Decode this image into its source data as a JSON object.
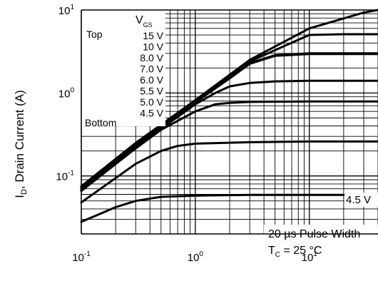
{
  "chart_data": {
    "type": "line",
    "scale": {
      "x": "log",
      "y": "log"
    },
    "xlim": [
      0.1,
      40
    ],
    "ylim": [
      0.02,
      10
    ],
    "grid": true,
    "ylabel": {
      "main": "I",
      "sub": "D",
      "rest": ", Drain Current (A)"
    },
    "x_ticks": [
      {
        "value": 0.1,
        "base": "10",
        "exp": "-1"
      },
      {
        "value": 1,
        "base": "10",
        "exp": "0"
      },
      {
        "value": 10,
        "base": "10",
        "exp": "1"
      }
    ],
    "y_ticks": [
      {
        "value": 10,
        "base": "10",
        "exp": "1"
      },
      {
        "value": 1,
        "base": "10",
        "exp": "0"
      },
      {
        "value": 0.1,
        "base": "10",
        "exp": "-1"
      }
    ],
    "legend": {
      "heading": {
        "main": "V",
        "sub": "GS"
      },
      "top_label": "Top",
      "bottom_label": "Bottom",
      "entries": [
        "15 V",
        "10 V",
        "8.0 V",
        "7.0 V",
        "6.0 V",
        "5.5 V",
        "5.0 V",
        "4.5 V"
      ]
    },
    "annotations": {
      "curve_label": "4.5 V",
      "pulse": "20 µs Pulse Width",
      "temp": {
        "main": "T",
        "sub": "C",
        "rest": " = 25 °C"
      }
    },
    "series": [
      {
        "name": "15 V",
        "x": [
          0.1,
          0.3,
          1,
          3,
          10,
          30,
          40
        ],
        "y": [
          0.075,
          0.25,
          0.82,
          2.5,
          6.0,
          9.3,
          10
        ]
      },
      {
        "name": "10 V",
        "x": [
          0.1,
          0.3,
          1,
          3,
          10,
          20,
          40
        ],
        "y": [
          0.073,
          0.245,
          0.8,
          2.4,
          5.0,
          5.1,
          5.1
        ]
      },
      {
        "name": "8.0 V",
        "x": [
          0.1,
          0.3,
          1,
          2,
          3,
          5,
          10,
          40
        ],
        "y": [
          0.072,
          0.24,
          0.78,
          1.55,
          2.3,
          2.85,
          3.0,
          3.0
        ]
      },
      {
        "name": "7.0 V",
        "x": [
          0.1,
          0.3,
          1,
          2,
          3,
          5,
          10,
          40
        ],
        "y": [
          0.07,
          0.235,
          0.77,
          1.5,
          2.25,
          2.8,
          2.95,
          2.95
        ]
      },
      {
        "name": "6.0 V",
        "x": [
          0.1,
          0.3,
          1,
          1.5,
          2,
          3,
          5,
          10,
          40
        ],
        "y": [
          0.068,
          0.225,
          0.73,
          1.0,
          1.2,
          1.32,
          1.38,
          1.4,
          1.4
        ]
      },
      {
        "name": "5.5 V",
        "x": [
          0.1,
          0.3,
          0.5,
          1,
          1.5,
          2,
          3,
          10,
          40
        ],
        "y": [
          0.066,
          0.215,
          0.36,
          0.6,
          0.73,
          0.76,
          0.78,
          0.79,
          0.79
        ]
      },
      {
        "name": "5.0 V",
        "x": [
          0.1,
          0.3,
          0.5,
          0.7,
          1,
          3,
          10,
          40
        ],
        "y": [
          0.048,
          0.14,
          0.2,
          0.23,
          0.245,
          0.255,
          0.26,
          0.26
        ]
      },
      {
        "name": "4.5 V",
        "x": [
          0.1,
          0.2,
          0.3,
          0.5,
          1,
          3,
          10,
          40
        ],
        "y": [
          0.028,
          0.042,
          0.05,
          0.056,
          0.058,
          0.059,
          0.059,
          0.059
        ]
      }
    ]
  }
}
